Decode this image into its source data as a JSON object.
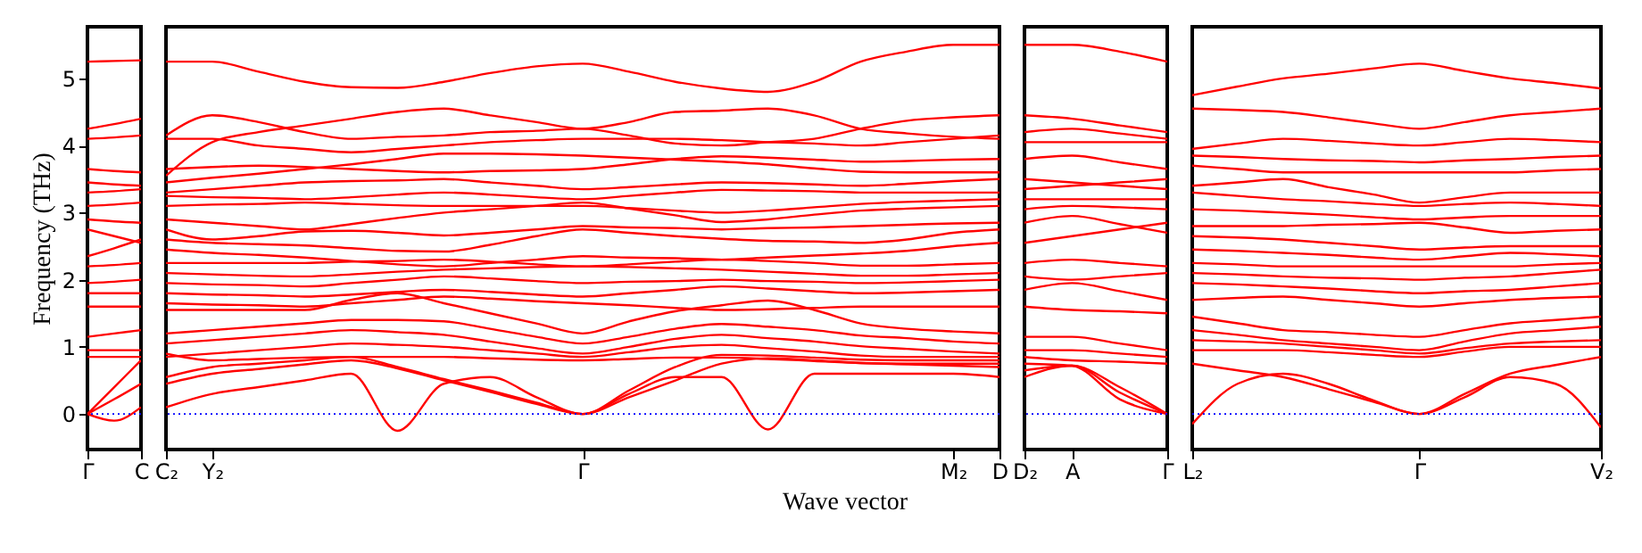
{
  "chart_data": [
    {
      "type": "line",
      "ylabel": "Frequency (THz)",
      "categories": [
        "Γ",
        null,
        "C"
      ],
      "ylim": [
        -0.53,
        5.77
      ],
      "yticks": [
        0,
        1,
        2,
        3,
        4,
        5
      ],
      "ref_lines": [
        {
          "axis": "y",
          "value": 0,
          "color": "#0000ff",
          "line_style": "dotted"
        }
      ],
      "series": [
        {
          "color": "#ff0000",
          "values": [
            5.25,
            5.26,
            5.27
          ]
        },
        {
          "color": "#ff0000",
          "values": [
            4.25,
            4.32,
            4.4
          ]
        },
        {
          "color": "#ff0000",
          "values": [
            4.1,
            4.12,
            4.15
          ]
        },
        {
          "color": "#ff0000",
          "values": [
            3.65,
            3.62,
            3.6
          ]
        },
        {
          "color": "#ff0000",
          "values": [
            3.45,
            3.42,
            3.4
          ]
        },
        {
          "color": "#ff0000",
          "values": [
            3.3,
            3.32,
            3.35
          ]
        },
        {
          "color": "#ff0000",
          "values": [
            3.1,
            3.12,
            3.15
          ]
        },
        {
          "color": "#ff0000",
          "values": [
            2.9,
            2.87,
            2.85
          ]
        },
        {
          "color": "#ff0000",
          "values": [
            2.75,
            2.65,
            2.55
          ]
        },
        {
          "color": "#ff0000",
          "values": [
            2.35,
            2.47,
            2.6
          ]
        },
        {
          "color": "#ff0000",
          "values": [
            2.2,
            2.22,
            2.25
          ]
        },
        {
          "color": "#ff0000",
          "values": [
            1.95,
            1.97,
            2.0
          ]
        },
        {
          "color": "#ff0000",
          "values": [
            1.8,
            1.8,
            1.8
          ]
        },
        {
          "color": "#ff0000",
          "values": [
            1.6,
            1.6,
            1.6
          ]
        },
        {
          "color": "#ff0000",
          "values": [
            1.15,
            1.2,
            1.25
          ]
        },
        {
          "color": "#ff0000",
          "values": [
            0.95,
            0.95,
            0.95
          ]
        },
        {
          "color": "#ff0000",
          "values": [
            0.85,
            0.85,
            0.85
          ]
        },
        {
          "color": "#ff0000",
          "values": [
            0,
            0.4,
            0.8
          ]
        },
        {
          "color": "#ff0000",
          "values": [
            0,
            0.22,
            0.45
          ]
        },
        {
          "color": "#ff0000",
          "values": [
            0,
            -0.1,
            0.1
          ]
        }
      ]
    },
    {
      "type": "line",
      "xlabel": "Wave vector",
      "tick_labels": "x",
      "categories": [
        "C₂",
        "Y₂",
        null,
        null,
        null,
        null,
        null,
        null,
        null,
        "Γ",
        null,
        null,
        null,
        null,
        null,
        null,
        null,
        "M₂",
        "D"
      ],
      "ylim": [
        -0.53,
        5.77
      ],
      "yticks": [
        0,
        1,
        2,
        3,
        4,
        5
      ],
      "ref_lines": [
        {
          "axis": "y",
          "value": 0,
          "color": "#0000ff",
          "line_style": "dotted"
        }
      ],
      "series": [
        {
          "color": "#ff0000",
          "values": [
            5.25,
            5.25,
            5.1,
            4.95,
            4.87,
            4.86,
            4.95,
            5.08,
            5.18,
            5.22,
            5.1,
            4.95,
            4.85,
            4.8,
            4.95,
            5.25,
            5.4,
            5.5,
            5.5
          ]
        },
        {
          "color": "#ff0000",
          "values": [
            3.55,
            4.05,
            4.2,
            4.3,
            4.4,
            4.5,
            4.55,
            4.45,
            4.35,
            4.25,
            4.35,
            4.5,
            4.52,
            4.55,
            4.45,
            4.25,
            4.18,
            4.13,
            4.1
          ]
        },
        {
          "color": "#ff0000",
          "values": [
            4.15,
            4.45,
            4.35,
            4.2,
            4.1,
            4.13,
            4.15,
            4.2,
            4.22,
            4.25,
            4.15,
            4.03,
            4.0,
            4.05,
            4.1,
            4.25,
            4.37,
            4.42,
            4.45
          ]
        },
        {
          "color": "#ff0000",
          "values": [
            4.1,
            4.1,
            4.0,
            3.95,
            3.9,
            3.95,
            4.0,
            4.05,
            4.08,
            4.1,
            4.1,
            4.1,
            4.08,
            4.05,
            4.03,
            4.0,
            4.05,
            4.1,
            4.15
          ]
        },
        {
          "color": "#ff0000",
          "values": [
            3.65,
            3.68,
            3.7,
            3.68,
            3.65,
            3.62,
            3.6,
            3.62,
            3.63,
            3.65,
            3.72,
            3.8,
            3.84,
            3.82,
            3.79,
            3.76,
            3.77,
            3.79,
            3.8
          ]
        },
        {
          "color": "#ff0000",
          "values": [
            3.45,
            3.52,
            3.58,
            3.65,
            3.72,
            3.8,
            3.88,
            3.88,
            3.87,
            3.85,
            3.82,
            3.79,
            3.76,
            3.72,
            3.66,
            3.61,
            3.6,
            3.6,
            3.6
          ]
        },
        {
          "color": "#ff0000",
          "values": [
            3.3,
            3.35,
            3.4,
            3.45,
            3.47,
            3.48,
            3.5,
            3.45,
            3.4,
            3.35,
            3.38,
            3.42,
            3.45,
            3.44,
            3.42,
            3.4,
            3.43,
            3.47,
            3.5
          ]
        },
        {
          "color": "#ff0000",
          "values": [
            3.25,
            3.23,
            3.22,
            3.2,
            3.23,
            3.27,
            3.3,
            3.27,
            3.23,
            3.2,
            3.25,
            3.3,
            3.34,
            3.33,
            3.32,
            3.3,
            3.3,
            3.3,
            3.3
          ]
        },
        {
          "color": "#ff0000",
          "values": [
            3.1,
            3.12,
            3.13,
            3.15,
            3.13,
            3.11,
            3.1,
            3.1,
            3.1,
            3.1,
            3.07,
            3.03,
            3.0,
            3.03,
            3.08,
            3.13,
            3.16,
            3.18,
            3.2
          ]
        },
        {
          "color": "#ff0000",
          "values": [
            2.9,
            2.85,
            2.8,
            2.75,
            2.83,
            2.92,
            3.0,
            3.05,
            3.1,
            3.15,
            3.06,
            2.96,
            2.86,
            2.9,
            2.97,
            3.03,
            3.06,
            3.08,
            3.1
          ]
        },
        {
          "color": "#ff0000",
          "values": [
            2.75,
            2.6,
            2.65,
            2.72,
            2.73,
            2.7,
            2.66,
            2.7,
            2.75,
            2.8,
            2.78,
            2.77,
            2.75,
            2.77,
            2.78,
            2.8,
            2.82,
            2.84,
            2.85
          ]
        },
        {
          "color": "#ff0000",
          "values": [
            2.6,
            2.55,
            2.53,
            2.51,
            2.47,
            2.43,
            2.42,
            2.52,
            2.65,
            2.75,
            2.7,
            2.65,
            2.61,
            2.58,
            2.57,
            2.55,
            2.6,
            2.7,
            2.75
          ]
        },
        {
          "color": "#ff0000",
          "values": [
            2.45,
            2.4,
            2.37,
            2.33,
            2.28,
            2.23,
            2.2,
            2.25,
            2.3,
            2.35,
            2.33,
            2.32,
            2.3,
            2.33,
            2.36,
            2.39,
            2.43,
            2.5,
            2.55
          ]
        },
        {
          "color": "#ff0000",
          "values": [
            2.25,
            2.25,
            2.25,
            2.25,
            2.27,
            2.28,
            2.3,
            2.27,
            2.23,
            2.2,
            2.23,
            2.27,
            2.3,
            2.28,
            2.25,
            2.21,
            2.21,
            2.23,
            2.25
          ]
        },
        {
          "color": "#ff0000",
          "values": [
            2.1,
            2.08,
            2.06,
            2.05,
            2.08,
            2.12,
            2.15,
            2.17,
            2.19,
            2.2,
            2.19,
            2.17,
            2.15,
            2.12,
            2.09,
            2.06,
            2.06,
            2.08,
            2.1
          ]
        },
        {
          "color": "#ff0000",
          "values": [
            1.95,
            1.93,
            1.92,
            1.9,
            1.95,
            2.0,
            2.05,
            2.02,
            1.98,
            1.95,
            1.97,
            1.98,
            2.0,
            1.98,
            1.97,
            1.95,
            1.96,
            1.98,
            2.0
          ]
        },
        {
          "color": "#ff0000",
          "values": [
            1.8,
            1.78,
            1.77,
            1.75,
            1.78,
            1.82,
            1.85,
            1.82,
            1.78,
            1.75,
            1.8,
            1.85,
            1.9,
            1.87,
            1.83,
            1.8,
            1.81,
            1.83,
            1.85
          ]
        },
        {
          "color": "#ff0000",
          "values": [
            1.65,
            1.63,
            1.62,
            1.6,
            1.65,
            1.7,
            1.75,
            1.72,
            1.68,
            1.65,
            1.62,
            1.58,
            1.55,
            1.56,
            1.58,
            1.6,
            1.6,
            1.6,
            1.6
          ]
        },
        {
          "color": "#ff0000",
          "values": [
            1.55,
            1.55,
            1.55,
            1.55,
            1.7,
            1.8,
            1.65,
            1.5,
            1.35,
            1.2,
            1.38,
            1.53,
            1.62,
            1.69,
            1.55,
            1.35,
            1.27,
            1.23,
            1.2
          ]
        },
        {
          "color": "#ff0000",
          "values": [
            1.2,
            1.25,
            1.3,
            1.35,
            1.4,
            1.4,
            1.38,
            1.27,
            1.15,
            1.05,
            1.15,
            1.27,
            1.34,
            1.3,
            1.25,
            1.17,
            1.13,
            1.08,
            1.05
          ]
        },
        {
          "color": "#ff0000",
          "values": [
            1.05,
            1.1,
            1.15,
            1.2,
            1.25,
            1.22,
            1.18,
            1.08,
            0.98,
            0.9,
            1.0,
            1.12,
            1.18,
            1.13,
            1.08,
            1.01,
            0.97,
            0.93,
            0.9
          ]
        },
        {
          "color": "#ff0000",
          "values": [
            0.85,
            0.9,
            0.95,
            1.0,
            1.05,
            1.03,
            1.0,
            0.95,
            0.9,
            0.85,
            0.92,
            1.0,
            1.03,
            0.98,
            0.93,
            0.87,
            0.85,
            0.85,
            0.85
          ]
        },
        {
          "color": "#ff0000",
          "values": [
            0.9,
            0.8,
            0.82,
            0.84,
            0.85,
            0.85,
            0.85,
            0.83,
            0.81,
            0.8,
            0.82,
            0.84,
            0.84,
            0.82,
            0.79,
            0.76,
            0.75,
            0.75,
            0.75
          ]
        },
        {
          "color": "#ff0000",
          "values": [
            0.45,
            0.6,
            0.67,
            0.74,
            0.8,
            0.68,
            0.5,
            0.33,
            0.15,
            0,
            0.25,
            0.5,
            0.75,
            0.83,
            0.8,
            0.76,
            0.74,
            0.72,
            0.7
          ]
        },
        {
          "color": "#ff0000",
          "values": [
            0.55,
            0.7,
            0.75,
            0.8,
            0.85,
            0.7,
            0.52,
            0.35,
            0.17,
            0,
            0.35,
            0.7,
            0.88,
            0.87,
            0.84,
            0.81,
            0.8,
            0.8,
            0.8
          ]
        },
        {
          "color": "#ff0000",
          "values": [
            0.1,
            0.3,
            0.4,
            0.5,
            0.6,
            -0.25,
            0.45,
            0.55,
            0.25,
            0,
            0.3,
            0.55,
            0.55,
            -0.23,
            0.6,
            0.6,
            0.6,
            0.6,
            0.55
          ]
        }
      ]
    },
    {
      "type": "line",
      "tick_labels": "x",
      "categories": [
        "D₂",
        "A",
        null,
        "Γ"
      ],
      "ylim": [
        -0.53,
        5.77
      ],
      "yticks": [
        0,
        1,
        2,
        3,
        4,
        5
      ],
      "ref_lines": [
        {
          "axis": "y",
          "value": 0,
          "color": "#0000ff",
          "line_style": "dotted"
        }
      ],
      "series": [
        {
          "color": "#ff0000",
          "values": [
            5.5,
            5.5,
            5.4,
            5.25
          ]
        },
        {
          "color": "#ff0000",
          "values": [
            4.45,
            4.4,
            4.3,
            4.2
          ]
        },
        {
          "color": "#ff0000",
          "values": [
            4.2,
            4.25,
            4.18,
            4.1
          ]
        },
        {
          "color": "#ff0000",
          "values": [
            4.05,
            4.05,
            4.05,
            4.05
          ]
        },
        {
          "color": "#ff0000",
          "values": [
            3.8,
            3.85,
            3.75,
            3.65
          ]
        },
        {
          "color": "#ff0000",
          "values": [
            3.5,
            3.45,
            3.4,
            3.35
          ]
        },
        {
          "color": "#ff0000",
          "values": [
            3.35,
            3.4,
            3.45,
            3.5
          ]
        },
        {
          "color": "#ff0000",
          "values": [
            3.2,
            3.2,
            3.2,
            3.2
          ]
        },
        {
          "color": "#ff0000",
          "values": [
            3.05,
            3.1,
            3.08,
            3.05
          ]
        },
        {
          "color": "#ff0000",
          "values": [
            2.85,
            2.95,
            2.83,
            2.7
          ]
        },
        {
          "color": "#ff0000",
          "values": [
            2.55,
            2.65,
            2.75,
            2.85
          ]
        },
        {
          "color": "#ff0000",
          "values": [
            2.25,
            2.3,
            2.25,
            2.2
          ]
        },
        {
          "color": "#ff0000",
          "values": [
            2.05,
            2.0,
            2.05,
            2.1
          ]
        },
        {
          "color": "#ff0000",
          "values": [
            1.85,
            1.95,
            1.83,
            1.7
          ]
        },
        {
          "color": "#ff0000",
          "values": [
            1.6,
            1.55,
            1.53,
            1.5
          ]
        },
        {
          "color": "#ff0000",
          "values": [
            1.15,
            1.15,
            1.05,
            0.95
          ]
        },
        {
          "color": "#ff0000",
          "values": [
            0.95,
            0.95,
            0.9,
            0.85
          ]
        },
        {
          "color": "#ff0000",
          "values": [
            0.85,
            0.8,
            0.78,
            0.75
          ]
        },
        {
          "color": "#ff0000",
          "values": [
            0.55,
            0.72,
            0.4,
            0
          ]
        },
        {
          "color": "#ff0000",
          "values": [
            0.65,
            0.72,
            0.32,
            0
          ]
        },
        {
          "color": "#ff0000",
          "values": [
            0.75,
            0.72,
            0.22,
            0
          ]
        }
      ]
    },
    {
      "type": "line",
      "tick_labels": "x",
      "categories": [
        "L₂",
        null,
        null,
        null,
        null,
        "Γ",
        null,
        null,
        null,
        "V₂"
      ],
      "ylim": [
        -0.53,
        5.77
      ],
      "yticks": [
        0,
        1,
        2,
        3,
        4,
        5
      ],
      "ref_lines": [
        {
          "axis": "y",
          "value": 0,
          "color": "#0000ff",
          "line_style": "dotted"
        }
      ],
      "series": [
        {
          "color": "#ff0000",
          "values": [
            4.75,
            4.88,
            5.0,
            5.07,
            5.15,
            5.22,
            5.11,
            5.0,
            4.93,
            4.85
          ]
        },
        {
          "color": "#ff0000",
          "values": [
            4.55,
            4.53,
            4.5,
            4.42,
            4.33,
            4.25,
            4.35,
            4.45,
            4.5,
            4.55
          ]
        },
        {
          "color": "#ff0000",
          "values": [
            3.95,
            4.03,
            4.1,
            4.07,
            4.03,
            4.0,
            4.05,
            4.1,
            4.08,
            4.05
          ]
        },
        {
          "color": "#ff0000",
          "values": [
            3.85,
            3.83,
            3.8,
            3.78,
            3.77,
            3.75,
            3.78,
            3.8,
            3.83,
            3.85
          ]
        },
        {
          "color": "#ff0000",
          "values": [
            3.7,
            3.65,
            3.6,
            3.6,
            3.6,
            3.6,
            3.6,
            3.6,
            3.63,
            3.65
          ]
        },
        {
          "color": "#ff0000",
          "values": [
            3.4,
            3.45,
            3.5,
            3.38,
            3.27,
            3.15,
            3.23,
            3.3,
            3.3,
            3.3
          ]
        },
        {
          "color": "#ff0000",
          "values": [
            3.3,
            3.25,
            3.2,
            3.17,
            3.13,
            3.1,
            3.13,
            3.15,
            3.13,
            3.1
          ]
        },
        {
          "color": "#ff0000",
          "values": [
            3.05,
            3.03,
            3.0,
            2.97,
            2.93,
            2.9,
            2.93,
            2.95,
            2.95,
            2.95
          ]
        },
        {
          "color": "#ff0000",
          "values": [
            2.8,
            2.8,
            2.8,
            2.82,
            2.83,
            2.85,
            2.78,
            2.7,
            2.73,
            2.75
          ]
        },
        {
          "color": "#ff0000",
          "values": [
            2.65,
            2.63,
            2.6,
            2.55,
            2.5,
            2.45,
            2.48,
            2.5,
            2.5,
            2.5
          ]
        },
        {
          "color": "#ff0000",
          "values": [
            2.45,
            2.43,
            2.4,
            2.37,
            2.33,
            2.3,
            2.35,
            2.4,
            2.38,
            2.35
          ]
        },
        {
          "color": "#ff0000",
          "values": [
            2.25,
            2.23,
            2.2,
            2.2,
            2.2,
            2.2,
            2.2,
            2.2,
            2.23,
            2.25
          ]
        },
        {
          "color": "#ff0000",
          "values": [
            2.1,
            2.08,
            2.05,
            2.03,
            2.02,
            2.0,
            2.03,
            2.05,
            2.1,
            2.15
          ]
        },
        {
          "color": "#ff0000",
          "values": [
            1.95,
            1.93,
            1.9,
            1.87,
            1.83,
            1.8,
            1.83,
            1.85,
            1.9,
            1.95
          ]
        },
        {
          "color": "#ff0000",
          "values": [
            1.7,
            1.73,
            1.75,
            1.7,
            1.65,
            1.6,
            1.65,
            1.7,
            1.73,
            1.75
          ]
        },
        {
          "color": "#ff0000",
          "values": [
            1.45,
            1.35,
            1.25,
            1.22,
            1.18,
            1.15,
            1.25,
            1.35,
            1.4,
            1.45
          ]
        },
        {
          "color": "#ff0000",
          "values": [
            1.25,
            1.18,
            1.1,
            1.05,
            1.0,
            0.95,
            1.08,
            1.2,
            1.25,
            1.3
          ]
        },
        {
          "color": "#ff0000",
          "values": [
            1.1,
            1.08,
            1.05,
            1.0,
            0.95,
            0.9,
            0.98,
            1.05,
            1.08,
            1.1
          ]
        },
        {
          "color": "#ff0000",
          "values": [
            0.95,
            0.95,
            0.95,
            0.92,
            0.88,
            0.85,
            0.93,
            1.0,
            1.0,
            1.0
          ]
        },
        {
          "color": "#ff0000",
          "values": [
            0.75,
            0.65,
            0.55,
            0.37,
            0.18,
            0,
            0.3,
            0.6,
            0.73,
            0.85
          ]
        },
        {
          "color": "#ff0000",
          "values": [
            -0.15,
            0.45,
            0.6,
            0.45,
            0.2,
            0,
            0.25,
            0.55,
            0.45,
            -0.2
          ]
        }
      ]
    }
  ]
}
